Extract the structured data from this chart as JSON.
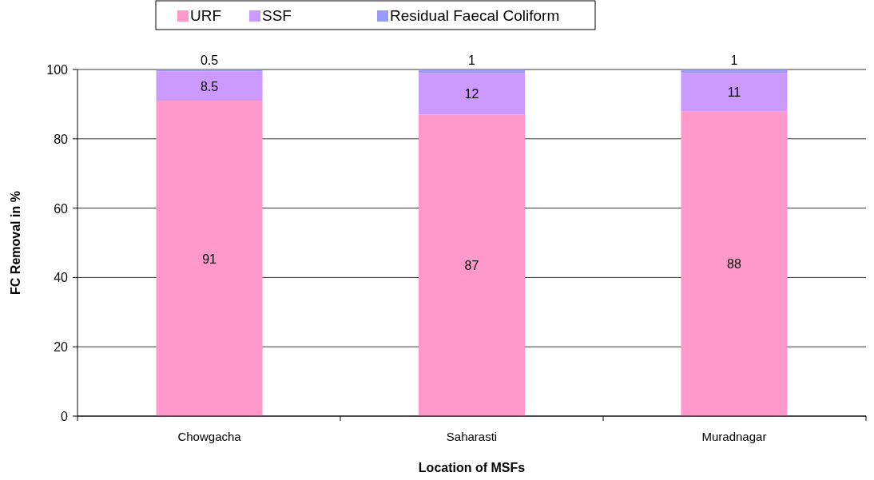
{
  "chart_data": {
    "type": "bar",
    "stacked": true,
    "xlabel": "Location of MSFs",
    "ylabel": "FC Removal in %",
    "categories": [
      "Chowgacha",
      "Saharasti",
      "Muradnagar"
    ],
    "series": [
      {
        "name": "URF",
        "color": "#ff99cc",
        "values": [
          91,
          87,
          88
        ]
      },
      {
        "name": "SSF",
        "color": "#cc99ff",
        "values": [
          8.5,
          12,
          11
        ]
      },
      {
        "name": "Residual Faecal Coliform",
        "color": "#9999ff",
        "values": [
          0.5,
          1,
          1
        ]
      }
    ],
    "ylim": [
      0,
      100
    ],
    "yticks": [
      0,
      20,
      40,
      60,
      80,
      100
    ],
    "grid": "y",
    "legend": "top",
    "data_labels": true
  }
}
